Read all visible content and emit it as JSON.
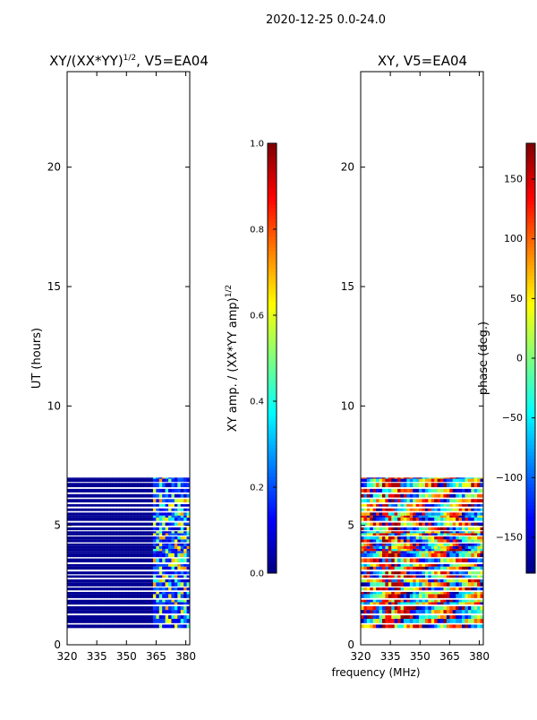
{
  "suptitle": "2020-12-25 0.0-24.0",
  "shared_xlabel": "frequency (MHz)",
  "colors": {
    "background_bar": "#00007f",
    "jet_stops": [
      "#00007f",
      "#0000ff",
      "#007fff",
      "#00ffff",
      "#7fff7f",
      "#ffff00",
      "#ff7f00",
      "#ff0000",
      "#7f0000"
    ]
  },
  "chart_data": [
    {
      "type": "heatmap",
      "title_main": "XY/(XX*YY)",
      "title_sup": "1/2",
      "title_tail": ", V5=EA04",
      "xlabel": "",
      "ylabel": "UT (hours)",
      "xlim": [
        320,
        382
      ],
      "ylim": [
        0,
        24
      ],
      "xticks": [
        320,
        335,
        350,
        365,
        380
      ],
      "yticks": [
        0,
        5,
        10,
        15,
        20
      ],
      "data_y_range": [
        0.7,
        7.0
      ],
      "quantity": "normalized amplitude",
      "colorbar": {
        "label_main": "XY amp. / (XX*YY amp)",
        "label_sup": "1/2",
        "range": [
          0.0,
          1.0
        ],
        "ticks": [
          "0.0",
          "0.2",
          "0.4",
          "0.6",
          "0.8",
          "1.0"
        ],
        "tick_values": [
          0.0,
          0.2,
          0.4,
          0.6,
          0.8,
          1.0
        ]
      }
    },
    {
      "type": "heatmap",
      "title_main": "XY, V5=EA04",
      "title_sup": "",
      "title_tail": "",
      "xlabel": "frequency (MHz)",
      "ylabel": "",
      "xlim": [
        320,
        382
      ],
      "ylim": [
        0,
        24
      ],
      "xticks": [
        320,
        335,
        350,
        365,
        380
      ],
      "yticks": [
        0,
        5,
        10,
        15,
        20
      ],
      "data_y_range": [
        0.7,
        7.0
      ],
      "quantity": "phase",
      "colorbar": {
        "label_main": "phase (deg.)",
        "label_sup": "",
        "range": [
          -180,
          180
        ],
        "ticks": [
          "−150",
          "−100",
          "−50",
          "0",
          "50",
          "100",
          "150"
        ],
        "tick_values": [
          -150,
          -100,
          -50,
          0,
          50,
          100,
          150
        ]
      }
    }
  ]
}
